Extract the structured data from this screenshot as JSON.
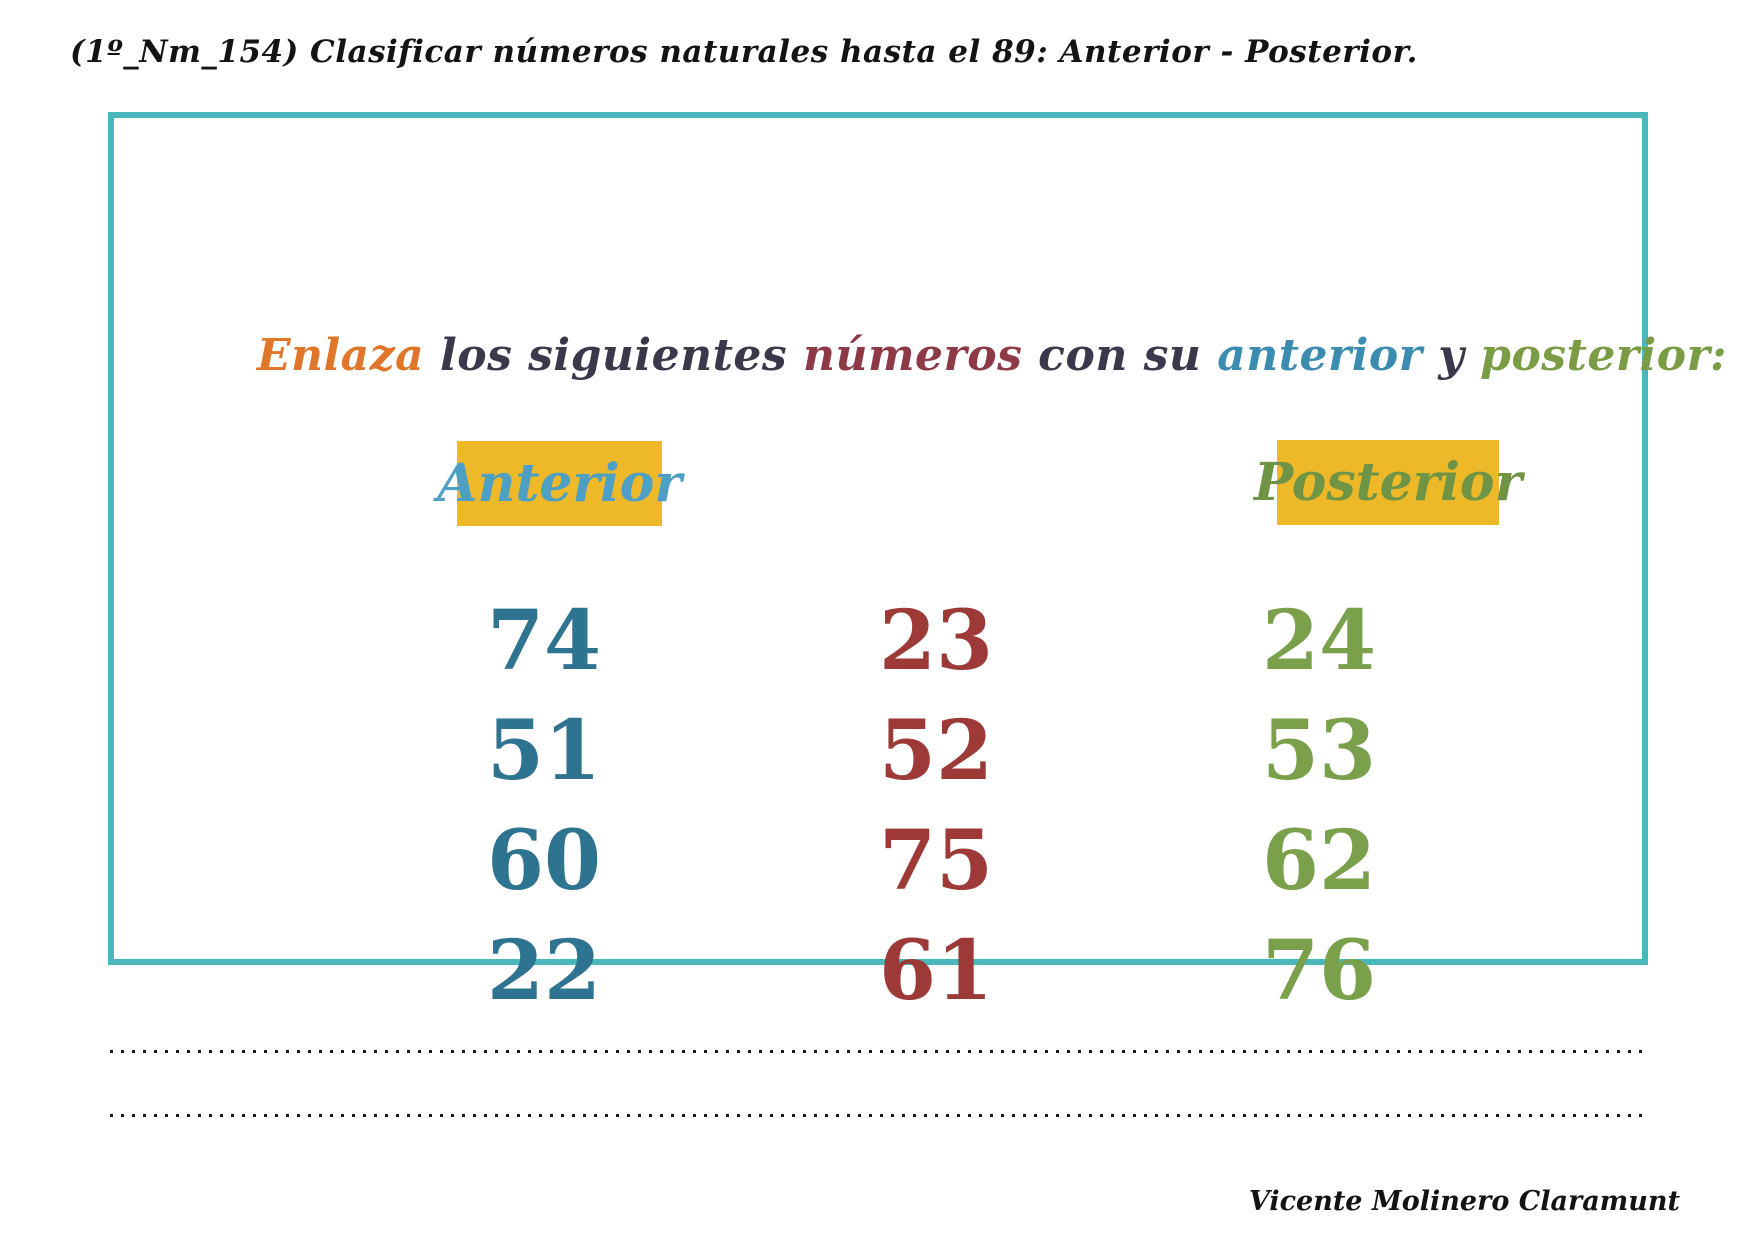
{
  "page": {
    "header": "(1º_Nm_154) Clasificar números naturales hasta el 89: Anterior - Posterior.",
    "signature": "Vicente Molinero Claramunt"
  },
  "worksheet": {
    "border_color": "#4ab7bd",
    "title_parts": [
      {
        "text": "Enlaza",
        "color": "#e0762a"
      },
      {
        "text": " los siguientes ",
        "color": "#39394b"
      },
      {
        "text": "números",
        "color": "#8e3a46"
      },
      {
        "text": " con su ",
        "color": "#39394b"
      },
      {
        "text": "anterior",
        "color": "#3b8cb0"
      },
      {
        "text": " y ",
        "color": "#39394b"
      },
      {
        "text": "posterior:",
        "color": "#7a9c45"
      }
    ],
    "column_headers": [
      {
        "label": "Anterior",
        "text_color": "#4d9fc4",
        "bg_color": "#edb929"
      },
      {
        "label": "Posterior",
        "text_color": "#6f9445",
        "bg_color": "#edb929"
      }
    ],
    "number_columns": {
      "anterior": {
        "color": "#2e7390",
        "values": [
          "74",
          "51",
          "60",
          "22"
        ]
      },
      "middle": {
        "color": "#9d3937",
        "values": [
          "23",
          "52",
          "75",
          "61"
        ]
      },
      "posterior": {
        "color": "#7aa04b",
        "values": [
          "24",
          "53",
          "62",
          "76"
        ]
      }
    }
  }
}
